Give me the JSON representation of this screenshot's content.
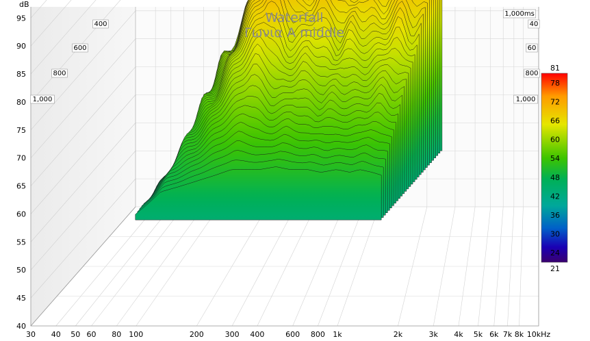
{
  "chart_data": {
    "type": "waterfall",
    "title": "Waterfall",
    "subtitle": "Γωνια A middle",
    "ylabel": "dB",
    "y_ticks": [
      40,
      45,
      50,
      55,
      60,
      65,
      70,
      75,
      80,
      85,
      90,
      95
    ],
    "ylim": [
      40,
      97
    ],
    "x_scale": "log",
    "x_ticks": [
      {
        "v": 30,
        "label": "30"
      },
      {
        "v": 40,
        "label": "40"
      },
      {
        "v": 50,
        "label": "50"
      },
      {
        "v": 60,
        "label": "60"
      },
      {
        "v": 80,
        "label": "80"
      },
      {
        "v": 100,
        "label": "100"
      },
      {
        "v": 200,
        "label": "200"
      },
      {
        "v": 300,
        "label": "300"
      },
      {
        "v": 400,
        "label": "400"
      },
      {
        "v": 600,
        "label": "600"
      },
      {
        "v": 800,
        "label": "800"
      },
      {
        "v": 1000,
        "label": "1k"
      },
      {
        "v": 2000,
        "label": "2k"
      },
      {
        "v": 3000,
        "label": "3k"
      },
      {
        "v": 4000,
        "label": "4k"
      },
      {
        "v": 5000,
        "label": "5k"
      },
      {
        "v": 6000,
        "label": "6k"
      },
      {
        "v": 7000,
        "label": "7k"
      },
      {
        "v": 8000,
        "label": "8k"
      },
      {
        "v": 10000,
        "label": "10kHz"
      }
    ],
    "xlim": [
      30,
      10000
    ],
    "time_labels_left": [
      "400",
      "600",
      "800",
      "1,000"
    ],
    "time_labels_right": [
      "1,000ms",
      "40",
      "60",
      "800",
      "1,000"
    ],
    "colorbar": {
      "min": 21,
      "max": 81,
      "labels": [
        "81",
        "78",
        "72",
        "66",
        "60",
        "54",
        "48",
        "42",
        "36",
        "30",
        "24",
        "21"
      ]
    },
    "slices": {
      "count": 30,
      "front_freqs": [
        60,
        70,
        80,
        100,
        150,
        180,
        250,
        300,
        350,
        430,
        500,
        600,
        700,
        780,
        900,
        1000
      ],
      "front_levels": [
        51,
        53,
        55,
        56,
        58,
        59,
        59,
        59.5,
        59,
        59,
        58.5,
        59,
        58.5,
        59,
        58.5,
        58
      ],
      "back_freqs": [
        60,
        70,
        80,
        100,
        130,
        160,
        180,
        200,
        230,
        260,
        300,
        350,
        400,
        450,
        500,
        600,
        700,
        800,
        900,
        1000
      ],
      "back_levels": [
        52,
        58,
        66,
        72,
        84,
        92,
        96,
        92,
        84,
        85,
        88,
        86,
        82,
        86,
        84,
        83,
        86,
        90,
        84,
        86
      ]
    }
  }
}
